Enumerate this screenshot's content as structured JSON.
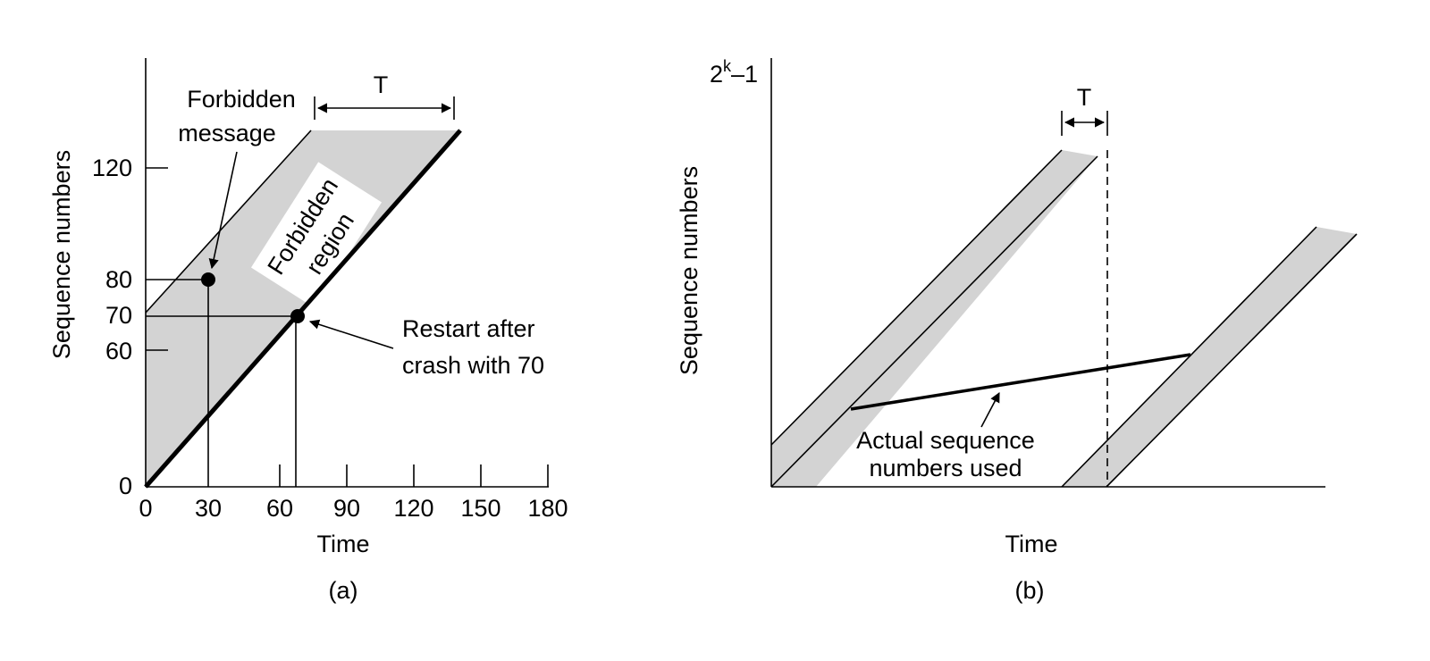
{
  "colors": {
    "region": "#d3d3d3",
    "ink": "#000000",
    "background": "#ffffff"
  },
  "panel_a": {
    "caption": "(a)",
    "xlabel": "Time",
    "ylabel": "Sequence numbers",
    "x_ticks": [
      "0",
      "30",
      "60",
      "90",
      "120",
      "150",
      "180"
    ],
    "y_ticks": [
      "0",
      "60",
      "70",
      "80",
      "120"
    ],
    "period_label": "T",
    "forbidden_message_label": [
      "Forbidden",
      "message"
    ],
    "forbidden_region_label": [
      "Forbidden",
      "region"
    ],
    "restart_label": [
      "Restart after",
      "crash with 70"
    ]
  },
  "panel_b": {
    "caption": "(b)",
    "xlabel": "Time",
    "ylabel": "Sequence numbers",
    "ymax_base": "2",
    "ymax_exp": "k",
    "ymax_rest": "–1",
    "period_label": "T",
    "actual_label": [
      "Actual sequence",
      "numbers used"
    ]
  }
}
